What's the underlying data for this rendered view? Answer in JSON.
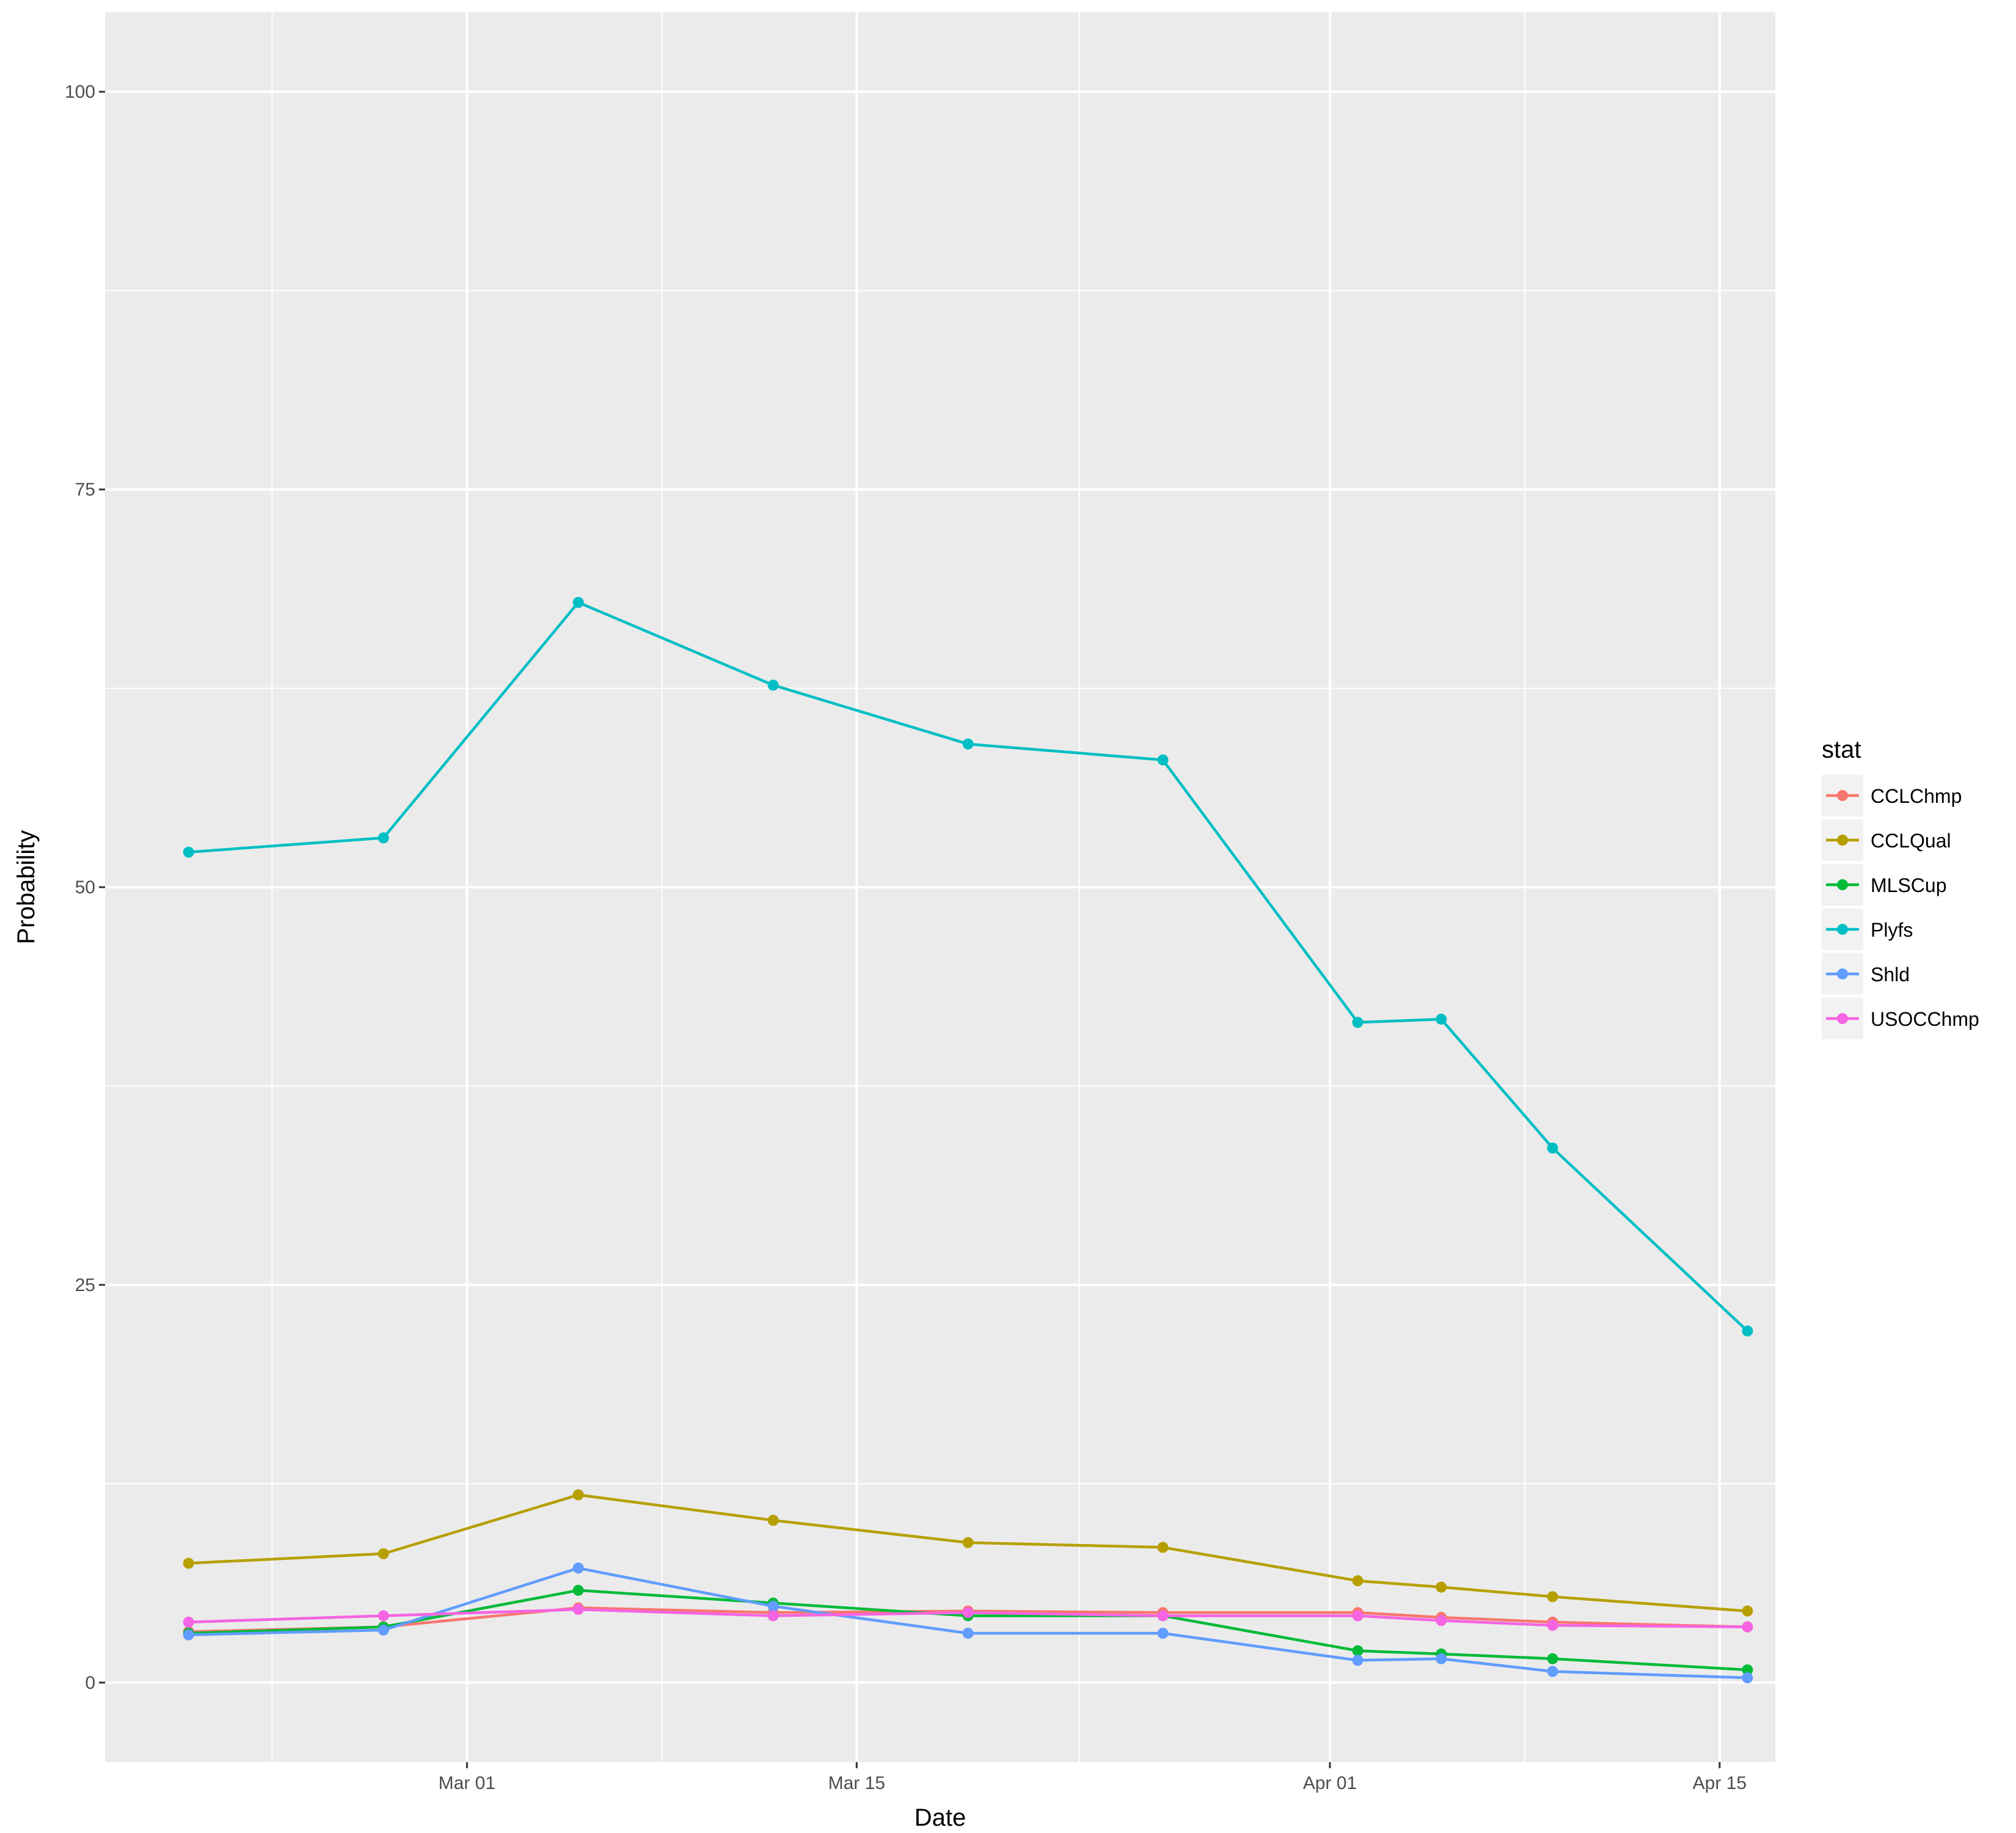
{
  "chart_data": {
    "type": "line",
    "xlabel": "Date",
    "ylabel": "Probability",
    "ylim": [
      -5,
      105
    ],
    "xlim": [
      "2016-02-17",
      "2016-04-17"
    ],
    "grid": true,
    "legend_position": "right",
    "legend_title": "stat",
    "x_ticks": [
      {
        "date": "2016-03-01",
        "label": "Mar 01"
      },
      {
        "date": "2016-03-15",
        "label": "Mar 15"
      },
      {
        "date": "2016-04-01",
        "label": "Apr 01"
      },
      {
        "date": "2016-04-15",
        "label": "Apr 15"
      }
    ],
    "x_minor_ticks": [
      "2016-02-23",
      "2016-03-08",
      "2016-03-23",
      "2016-04-08"
    ],
    "y_ticks": [
      0,
      25,
      50,
      75,
      100
    ],
    "y_minor_ticks": [
      12.5,
      37.5,
      62.5,
      87.5
    ],
    "dates": [
      "2016-02-20",
      "2016-02-27",
      "2016-03-05",
      "2016-03-12",
      "2016-03-19",
      "2016-03-26",
      "2016-04-02",
      "2016-04-05",
      "2016-04-09",
      "2016-04-16"
    ],
    "series": [
      {
        "name": "CCLChmp",
        "color": "#F8766D",
        "values": [
          3.2,
          3.5,
          4.7,
          4.4,
          4.5,
          4.4,
          4.4,
          4.1,
          3.8,
          3.5
        ]
      },
      {
        "name": "CCLQual",
        "color": "#B79F00",
        "values": [
          7.5,
          8.1,
          11.8,
          10.2,
          8.8,
          8.5,
          6.4,
          6.0,
          5.4,
          4.5
        ]
      },
      {
        "name": "MLSCup",
        "color": "#00BA38",
        "values": [
          3.1,
          3.5,
          5.8,
          5.0,
          4.2,
          4.2,
          2.0,
          1.8,
          1.5,
          0.8
        ]
      },
      {
        "name": "Plyfs",
        "color": "#00BFC4",
        "values": [
          52.2,
          53.1,
          67.9,
          62.7,
          59.0,
          58.0,
          41.5,
          41.7,
          33.6,
          22.1
        ]
      },
      {
        "name": "Shld",
        "color": "#619CFF",
        "values": [
          3.0,
          3.3,
          7.2,
          4.8,
          3.1,
          3.1,
          1.4,
          1.5,
          0.7,
          0.3
        ]
      },
      {
        "name": "USOCChmp",
        "color": "#F564E3",
        "values": [
          3.8,
          4.2,
          4.6,
          4.2,
          4.4,
          4.2,
          4.2,
          3.9,
          3.6,
          3.5
        ]
      }
    ]
  }
}
